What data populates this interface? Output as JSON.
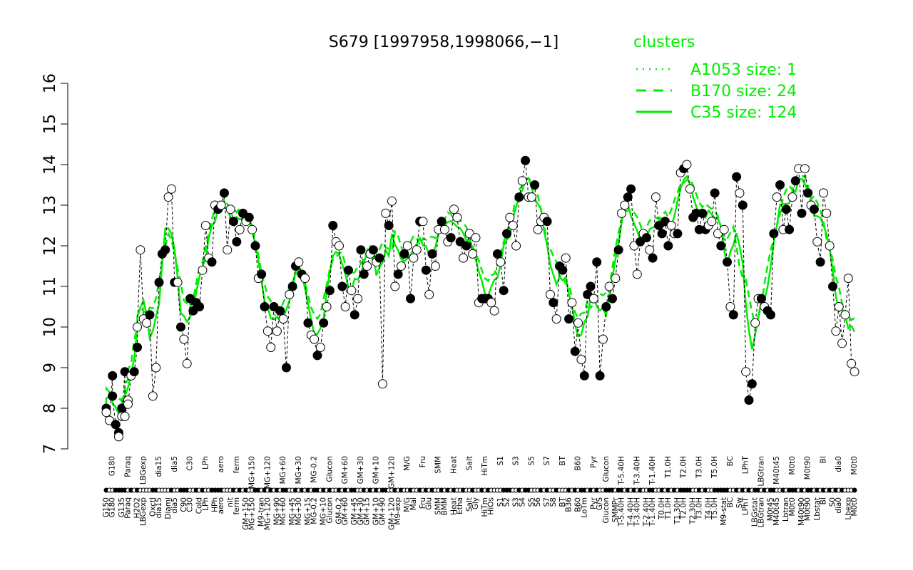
{
  "chart_data": {
    "type": "line",
    "title": "S679 [1997958,1998066,−1]",
    "xlabel": "",
    "ylabel": "",
    "ylim": [
      7,
      16
    ],
    "yticks": [
      7,
      8,
      9,
      10,
      11,
      12,
      13,
      14,
      15,
      16
    ],
    "grid": false,
    "legend": {
      "title": "clusters",
      "placement": "top-right",
      "color": "#00ee00",
      "entries": [
        {
          "label": "A1053 size: 1",
          "style": "dotted"
        },
        {
          "label": "B170 size: 24",
          "style": "dashed"
        },
        {
          "label": "C35 size: 124",
          "style": "solid"
        }
      ]
    },
    "x_tick_labels": [
      "G150",
      "G180",
      "G135",
      "Paraq",
      "H2O2",
      "LBGexp",
      "Oxctl",
      "dia15",
      "Diami",
      "dia5",
      "C90",
      "C30",
      "Cold",
      "LPh",
      "HPh",
      "aero",
      "nit",
      "ferm",
      "GM+150",
      "MG+150",
      "M9-tran",
      "MG+120",
      "MG+90",
      "MG+60",
      "MG+45",
      "MG+30",
      "MG+15",
      "MG-0.2",
      "MG+10",
      "Glucon",
      "GM-0.2",
      "GM+60",
      "GM+45",
      "GM+30",
      "GM+15",
      "GM+10",
      "GM+90",
      "GM+120",
      "M9-exp",
      "M/G",
      "Mal",
      "Fru",
      "Glu",
      "SMM",
      "BMM",
      "Heat",
      "Etha",
      "Salt",
      "Gly",
      "HiTm",
      "HiOs",
      "S1",
      "S2",
      "S3",
      "S4",
      "S5",
      "S6",
      "S7",
      "S8",
      "BT",
      "B36",
      "B60",
      "LoTm",
      "Pyr",
      "G/S",
      "Glucon",
      "SMMPr",
      "T-5.40H",
      "T-4.40H",
      "T-3.40H",
      "T-2.40H",
      "T-1.40H",
      "T0.0H",
      "T1.0H",
      "T1.30H",
      "T2.0H",
      "T2.30H",
      "T3.0H",
      "T4.0H",
      "T5.0H",
      "M9-stat",
      "BC",
      "Sw",
      "LPhT",
      "LBGstat",
      "LBGtran",
      "M0t45",
      "M40t45",
      "Lbtran",
      "M0t0",
      "M40t90",
      "M0t90",
      "Lbstat",
      "BI",
      "S0",
      "dia0",
      "Lbexp",
      "M0t0"
    ],
    "series": [
      {
        "name": "A1053 size: 1",
        "values": []
      },
      {
        "name": "B170 size: 24",
        "values": []
      },
      {
        "name": "C35 size: 124",
        "values": []
      }
    ],
    "points": [
      [
        0,
        8.0
      ],
      [
        0,
        7.9
      ],
      [
        1,
        7.7
      ],
      [
        2,
        8.8
      ],
      [
        2,
        8.3
      ],
      [
        3,
        7.6
      ],
      [
        4,
        7.4
      ],
      [
        4,
        7.3
      ],
      [
        5,
        8.0
      ],
      [
        5,
        7.8
      ],
      [
        6,
        8.9
      ],
      [
        6,
        7.8
      ],
      [
        7,
        8.2
      ],
      [
        7,
        8.1
      ],
      [
        8,
        8.8
      ],
      [
        9,
        8.9
      ],
      [
        10,
        9.5
      ],
      [
        10,
        10.0
      ],
      [
        11,
        11.9
      ],
      [
        12,
        10.2
      ],
      [
        13,
        10.1
      ],
      [
        14,
        10.3
      ],
      [
        15,
        8.3
      ],
      [
        16,
        9.0
      ],
      [
        17,
        11.1
      ],
      [
        18,
        11.8
      ],
      [
        19,
        11.9
      ],
      [
        20,
        13.2
      ],
      [
        21,
        13.4
      ],
      [
        22,
        11.1
      ],
      [
        23,
        11.1
      ],
      [
        24,
        10.0
      ],
      [
        25,
        9.7
      ],
      [
        26,
        9.1
      ],
      [
        27,
        10.7
      ],
      [
        28,
        10.4
      ],
      [
        29,
        10.6
      ],
      [
        30,
        10.5
      ],
      [
        31,
        11.4
      ],
      [
        32,
        12.5
      ],
      [
        33,
        11.7
      ],
      [
        34,
        11.6
      ],
      [
        35,
        13.0
      ],
      [
        36,
        12.9
      ],
      [
        37,
        13.0
      ],
      [
        38,
        13.3
      ],
      [
        39,
        11.9
      ],
      [
        40,
        12.9
      ],
      [
        41,
        12.6
      ],
      [
        42,
        12.1
      ],
      [
        43,
        12.4
      ],
      [
        44,
        12.8
      ],
      [
        45,
        12.6
      ],
      [
        46,
        12.7
      ],
      [
        47,
        12.4
      ],
      [
        48,
        12.0
      ],
      [
        49,
        11.2
      ],
      [
        50,
        11.3
      ],
      [
        51,
        10.5
      ],
      [
        52,
        9.9
      ],
      [
        53,
        9.5
      ],
      [
        54,
        10.5
      ],
      [
        55,
        9.9
      ],
      [
        56,
        10.4
      ],
      [
        57,
        10.2
      ],
      [
        58,
        9.0
      ],
      [
        59,
        10.8
      ],
      [
        60,
        11.0
      ],
      [
        61,
        11.5
      ],
      [
        62,
        11.6
      ],
      [
        63,
        11.3
      ],
      [
        64,
        11.2
      ],
      [
        65,
        10.1
      ],
      [
        66,
        9.8
      ],
      [
        67,
        9.7
      ],
      [
        68,
        9.3
      ],
      [
        69,
        9.5
      ],
      [
        70,
        10.1
      ],
      [
        71,
        10.5
      ],
      [
        72,
        10.9
      ],
      [
        73,
        12.5
      ],
      [
        74,
        12.1
      ],
      [
        75,
        12.0
      ],
      [
        76,
        11.0
      ],
      [
        77,
        10.5
      ],
      [
        78,
        11.4
      ],
      [
        79,
        10.9
      ],
      [
        80,
        10.3
      ],
      [
        81,
        10.7
      ],
      [
        82,
        11.9
      ],
      [
        83,
        11.3
      ],
      [
        84,
        11.5
      ],
      [
        85,
        11.8
      ],
      [
        86,
        11.9
      ],
      [
        87,
        11.6
      ],
      [
        88,
        11.7
      ],
      [
        89,
        8.6
      ],
      [
        90,
        12.8
      ],
      [
        91,
        12.5
      ],
      [
        92,
        13.1
      ],
      [
        93,
        11.0
      ],
      [
        94,
        11.3
      ],
      [
        95,
        11.5
      ],
      [
        96,
        11.8
      ],
      [
        97,
        12.0
      ],
      [
        98,
        10.7
      ],
      [
        99,
        11.7
      ],
      [
        100,
        11.9
      ],
      [
        101,
        12.6
      ],
      [
        102,
        12.6
      ],
      [
        103,
        11.4
      ],
      [
        104,
        10.8
      ],
      [
        105,
        11.8
      ],
      [
        106,
        11.5
      ],
      [
        107,
        12.4
      ],
      [
        108,
        12.6
      ],
      [
        109,
        12.4
      ],
      [
        110,
        12.1
      ],
      [
        111,
        12.2
      ],
      [
        112,
        12.9
      ],
      [
        113,
        12.7
      ],
      [
        114,
        12.1
      ],
      [
        115,
        11.7
      ],
      [
        116,
        12.0
      ],
      [
        117,
        12.3
      ],
      [
        118,
        11.8
      ],
      [
        119,
        12.2
      ],
      [
        120,
        10.6
      ],
      [
        121,
        10.7
      ],
      [
        122,
        10.7
      ],
      [
        123,
        10.7
      ],
      [
        124,
        10.6
      ],
      [
        125,
        10.4
      ],
      [
        126,
        11.8
      ],
      [
        127,
        11.6
      ],
      [
        128,
        10.9
      ],
      [
        129,
        12.3
      ],
      [
        130,
        12.7
      ],
      [
        131,
        12.5
      ],
      [
        132,
        12.0
      ],
      [
        133,
        13.2
      ],
      [
        134,
        13.6
      ],
      [
        135,
        14.1
      ],
      [
        136,
        13.2
      ],
      [
        137,
        13.2
      ],
      [
        138,
        13.5
      ],
      [
        139,
        12.4
      ],
      [
        140,
        12.6
      ],
      [
        141,
        12.7
      ],
      [
        142,
        12.6
      ],
      [
        143,
        10.8
      ],
      [
        144,
        10.6
      ],
      [
        145,
        10.2
      ],
      [
        146,
        11.5
      ],
      [
        147,
        11.4
      ],
      [
        148,
        11.7
      ],
      [
        149,
        10.2
      ],
      [
        150,
        10.6
      ],
      [
        151,
        9.4
      ],
      [
        152,
        10.1
      ],
      [
        153,
        9.2
      ],
      [
        154,
        8.8
      ],
      [
        155,
        10.8
      ],
      [
        156,
        11.0
      ],
      [
        157,
        10.7
      ],
      [
        158,
        11.6
      ],
      [
        159,
        8.8
      ],
      [
        160,
        9.7
      ],
      [
        161,
        10.5
      ],
      [
        162,
        11.0
      ],
      [
        163,
        10.7
      ],
      [
        164,
        11.2
      ],
      [
        165,
        11.9
      ],
      [
        166,
        12.8
      ],
      [
        167,
        13.0
      ],
      [
        168,
        13.2
      ],
      [
        169,
        13.4
      ],
      [
        170,
        12.0
      ],
      [
        171,
        11.3
      ],
      [
        172,
        12.1
      ],
      [
        173,
        12.3
      ],
      [
        174,
        12.2
      ],
      [
        175,
        11.9
      ],
      [
        176,
        11.7
      ],
      [
        177,
        13.2
      ],
      [
        178,
        12.5
      ],
      [
        179,
        12.3
      ],
      [
        180,
        12.6
      ],
      [
        181,
        12.0
      ],
      [
        182,
        12.5
      ],
      [
        183,
        12.3
      ],
      [
        184,
        12.3
      ],
      [
        185,
        13.8
      ],
      [
        186,
        13.9
      ],
      [
        187,
        14.0
      ],
      [
        188,
        13.4
      ],
      [
        189,
        12.7
      ],
      [
        190,
        12.8
      ],
      [
        191,
        12.4
      ],
      [
        192,
        12.8
      ],
      [
        193,
        12.4
      ],
      [
        194,
        12.5
      ],
      [
        195,
        12.6
      ],
      [
        196,
        13.3
      ],
      [
        197,
        12.3
      ],
      [
        198,
        12.0
      ],
      [
        199,
        12.4
      ],
      [
        200,
        11.6
      ],
      [
        201,
        10.5
      ],
      [
        202,
        10.3
      ],
      [
        203,
        13.7
      ],
      [
        204,
        13.3
      ],
      [
        205,
        13.0
      ],
      [
        206,
        8.9
      ],
      [
        207,
        8.2
      ],
      [
        208,
        8.6
      ],
      [
        209,
        10.1
      ],
      [
        210,
        10.7
      ],
      [
        211,
        10.7
      ],
      [
        212,
        10.5
      ],
      [
        213,
        10.4
      ],
      [
        214,
        10.3
      ],
      [
        215,
        12.3
      ],
      [
        216,
        13.2
      ],
      [
        217,
        13.5
      ],
      [
        218,
        12.4
      ],
      [
        219,
        12.9
      ],
      [
        220,
        12.4
      ],
      [
        221,
        13.2
      ],
      [
        222,
        13.6
      ],
      [
        223,
        13.9
      ],
      [
        224,
        12.8
      ],
      [
        225,
        13.9
      ],
      [
        226,
        13.3
      ],
      [
        227,
        13.0
      ],
      [
        228,
        12.9
      ],
      [
        229,
        12.1
      ],
      [
        230,
        11.6
      ],
      [
        231,
        13.3
      ],
      [
        232,
        12.8
      ],
      [
        233,
        12.0
      ],
      [
        234,
        11.0
      ],
      [
        235,
        9.9
      ],
      [
        236,
        10.5
      ],
      [
        237,
        9.6
      ],
      [
        238,
        10.3
      ],
      [
        239,
        11.2
      ],
      [
        240,
        9.1
      ],
      [
        241,
        8.9
      ]
    ],
    "filled_indices": [
      0,
      3,
      4,
      5,
      6,
      8,
      10,
      15,
      16,
      21,
      24,
      25,
      26,
      29,
      31,
      34,
      35,
      36,
      37,
      41,
      43,
      45,
      48,
      49,
      51,
      53,
      55,
      57,
      58,
      61,
      63,
      65,
      67,
      68,
      70,
      72,
      75,
      77,
      79,
      80,
      83,
      85,
      87,
      89,
      90,
      93,
      95,
      98,
      101,
      103,
      105,
      108,
      110,
      112,
      115,
      118,
      121,
      123,
      128,
      129,
      130,
      133,
      135,
      136,
      140,
      142,
      145,
      149,
      151,
      153,
      154,
      156,
      158,
      161,
      162,
      163,
      165,
      166,
      168,
      170,
      172,
      175,
      176,
      179,
      181,
      183,
      185,
      186,
      187,
      188,
      191,
      193,
      196,
      197,
      198,
      199,
      200,
      203,
      205,
      207,
      209,
      210,
      212,
      214,
      215,
      218,
      220,
      221,
      222,
      224,
      226,
      227,
      229,
      231,
      233,
      235,
      237,
      241
    ],
    "cluster_curves": {
      "B170": [],
      "C35": []
    }
  }
}
